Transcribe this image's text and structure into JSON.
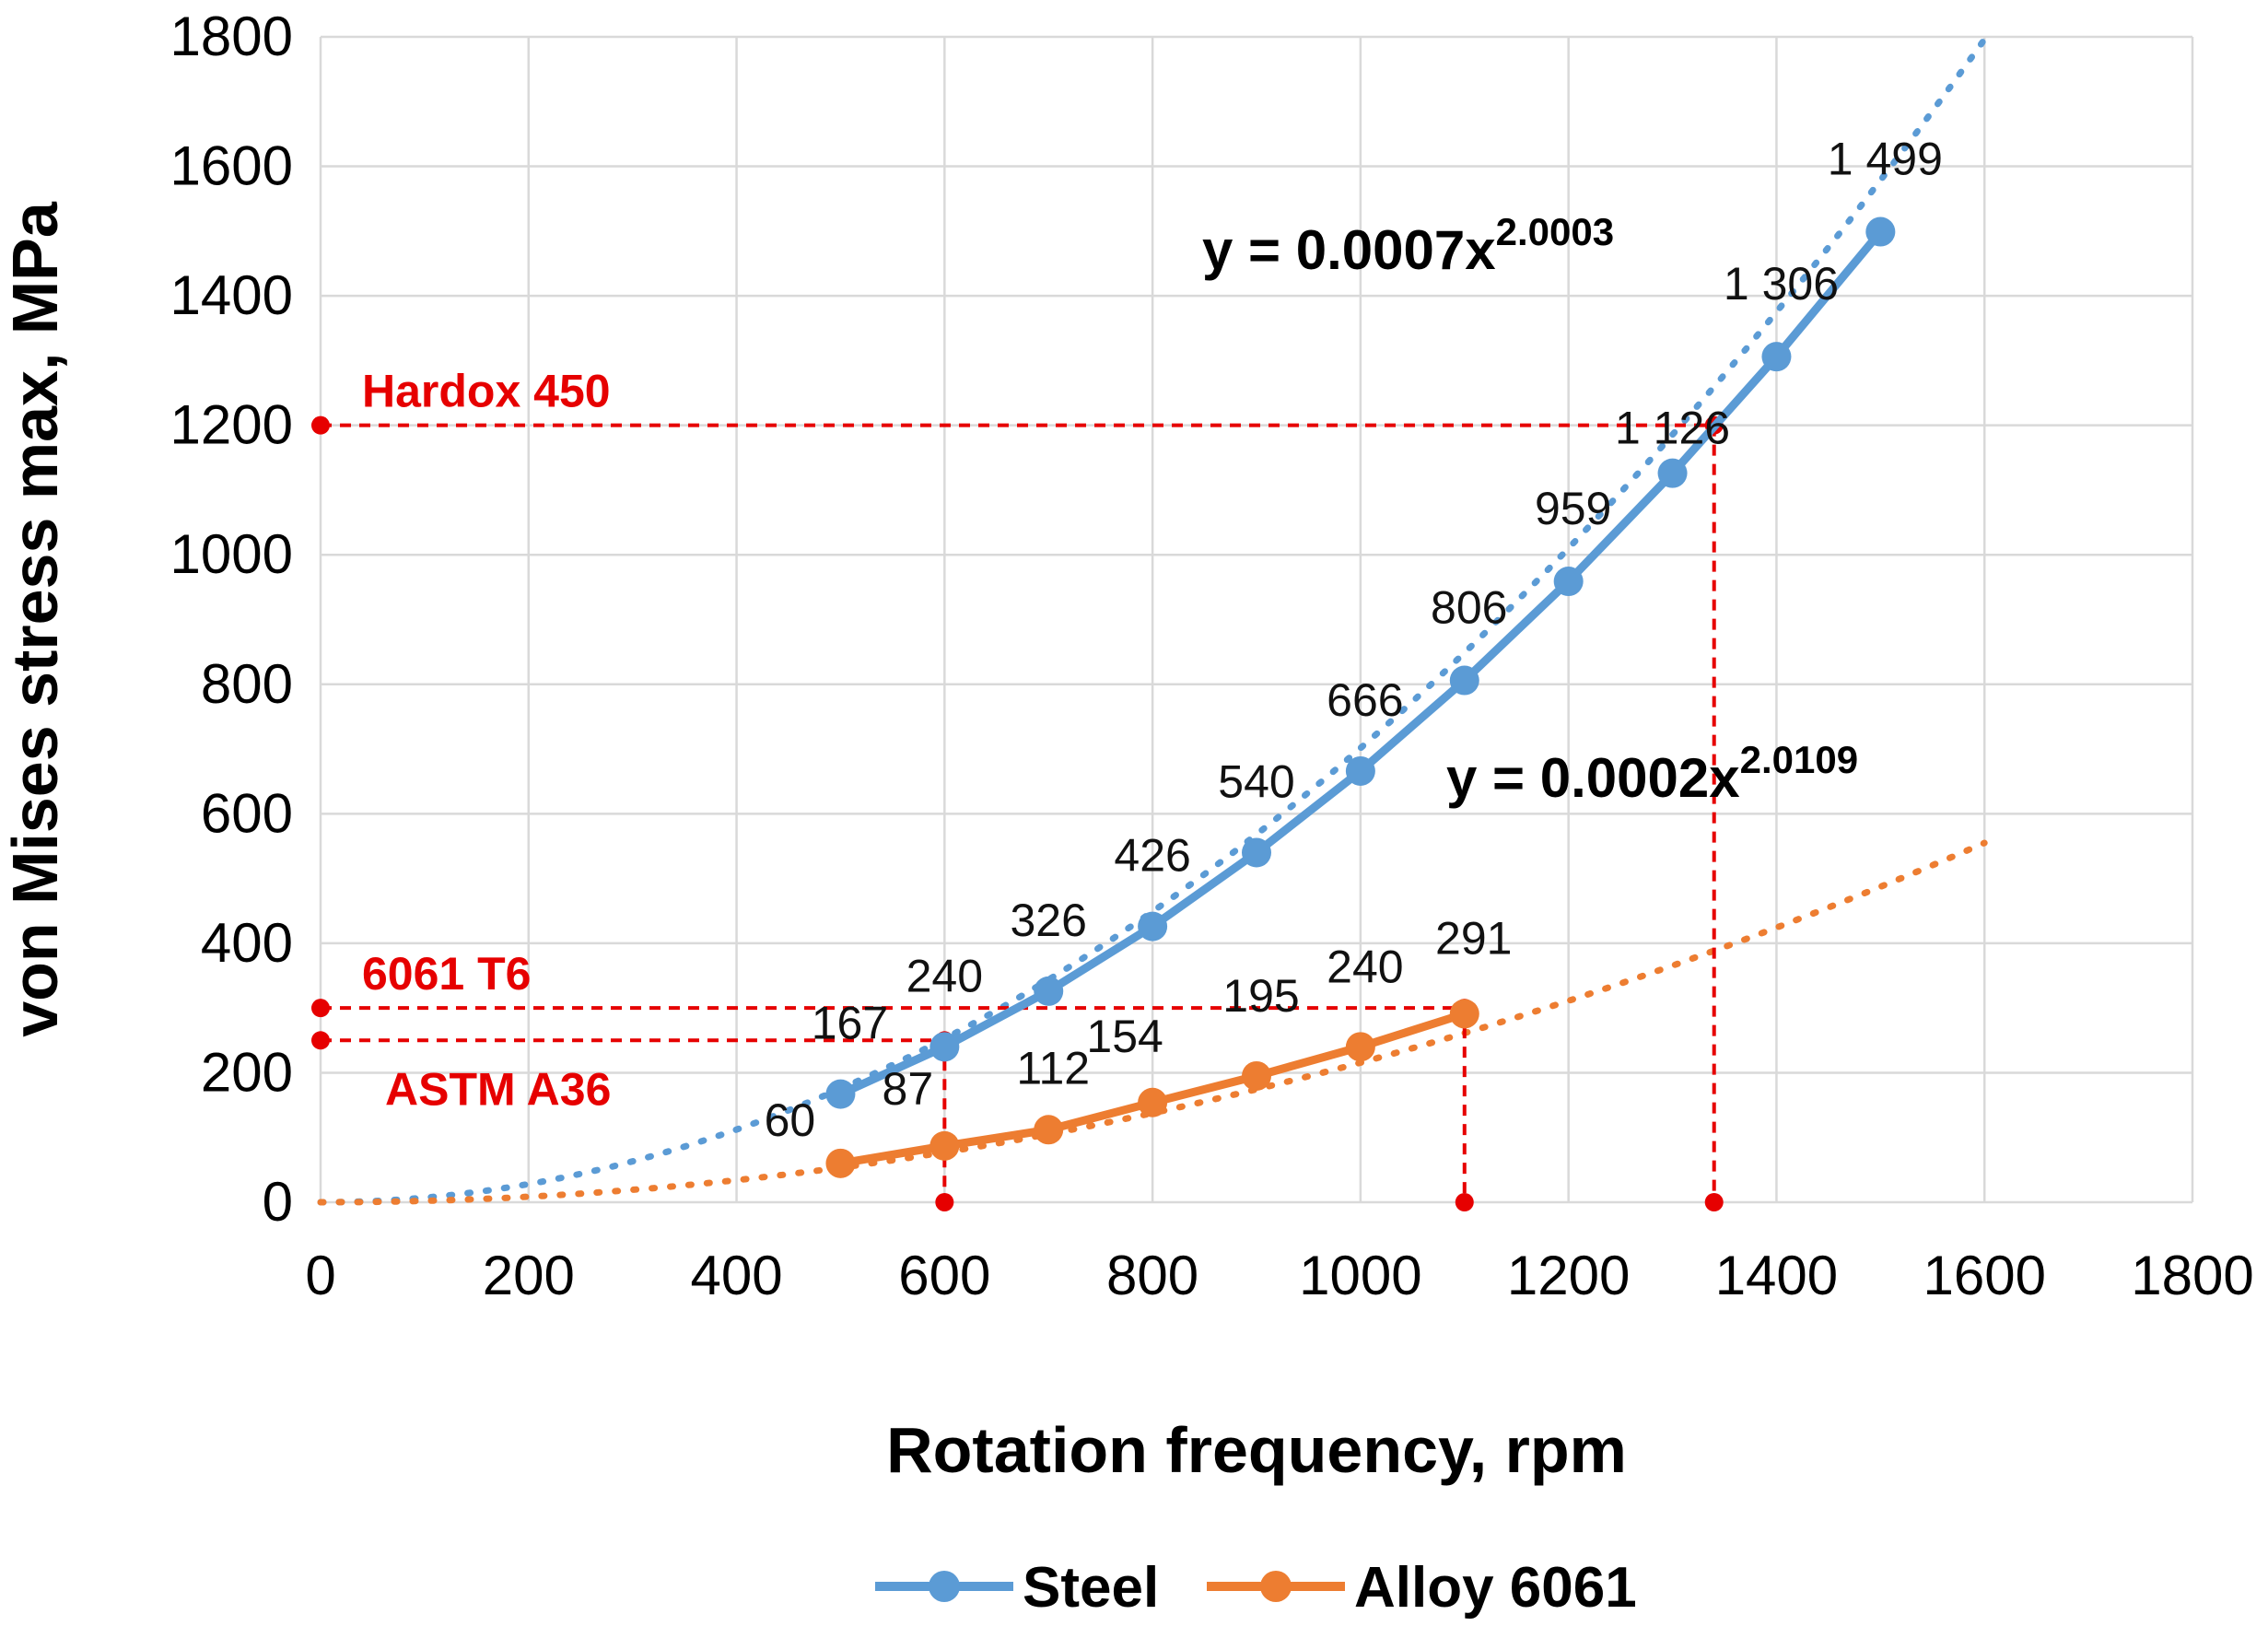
{
  "chart_data": {
    "type": "line",
    "xlabel": "Rotation frequency, rpm",
    "ylabel": "von Mises stress max, MPa",
    "xlim": [
      0,
      1800
    ],
    "ylim": [
      0,
      1800
    ],
    "x_ticks": [
      "0",
      "200",
      "400",
      "600",
      "800",
      "1000",
      "1200",
      "1400",
      "1600",
      "1800"
    ],
    "y_ticks": [
      "0",
      "200",
      "400",
      "600",
      "800",
      "1000",
      "1200",
      "1400",
      "1600",
      "1800"
    ],
    "grid": true,
    "legend_position": "bottom",
    "series": [
      {
        "name": "Steel",
        "color": "#5b9bd5",
        "x": [
          500,
          600,
          700,
          800,
          900,
          1000,
          1100,
          1200,
          1300,
          1400,
          1500
        ],
        "values": [
          167,
          240,
          326,
          426,
          540,
          666,
          806,
          959,
          1126,
          1306,
          1499
        ],
        "labels": [
          "167",
          "240",
          "326",
          "426",
          "540",
          "666",
          "806",
          "959",
          "1 126",
          "1 306",
          "1 499"
        ],
        "trendline": {
          "a": 0.0007,
          "b": 2.0003,
          "x_range": [
            0,
            1600
          ],
          "label_base": "y = 0.0007x",
          "label_exp": "2.0003"
        }
      },
      {
        "name": "Alloy 6061",
        "color": "#ed7d31",
        "x": [
          500,
          600,
          700,
          800,
          900,
          1000,
          1100
        ],
        "values": [
          60,
          87,
          112,
          154,
          195,
          240,
          291
        ],
        "labels": [
          "60",
          "87",
          "112",
          "154",
          "195",
          "240",
          "291"
        ],
        "trendline": {
          "a": 0.0002,
          "b": 2.0109,
          "x_range": [
            0,
            1600
          ],
          "label_base": "y = 0.0002x",
          "label_exp": "2.0109"
        }
      }
    ],
    "thresholds": [
      {
        "name": "Hardox 450",
        "y": 1200,
        "x_intersect": 1340
      },
      {
        "name": "6061 T6",
        "y": 300,
        "x_intersect": 1100
      },
      {
        "name": "ASTM A36",
        "y": 250,
        "x_intersect": 600
      }
    ],
    "threshold_color": "#e60000"
  }
}
